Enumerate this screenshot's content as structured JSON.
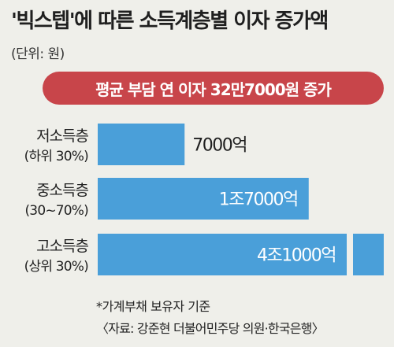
{
  "chart_data": {
    "type": "bar",
    "orientation": "horizontal",
    "title": "'빅스텝'에 따른 소득계층별 이자 증가액",
    "unit": "(단위: 원)",
    "banner": "평균 부담 연 이자 32만7000원 증가",
    "categories": [
      {
        "name": "저소득층",
        "sub": "(하위 30%)"
      },
      {
        "name": "중소득층",
        "sub": "(30~70%)"
      },
      {
        "name": "고소득층",
        "sub": "(상위 30%)"
      }
    ],
    "values": [
      7000,
      17000,
      41000
    ],
    "value_labels": [
      "7000억",
      "1조7000억",
      "4조1000억"
    ],
    "axis_break": true,
    "bar_color": "#4a9fd9",
    "banner_color": "#c8454a",
    "footnote": "*가계부채 보유자 기준",
    "source": "〈자료: 강준현 더불어민주당 의원·한국은행〉"
  }
}
